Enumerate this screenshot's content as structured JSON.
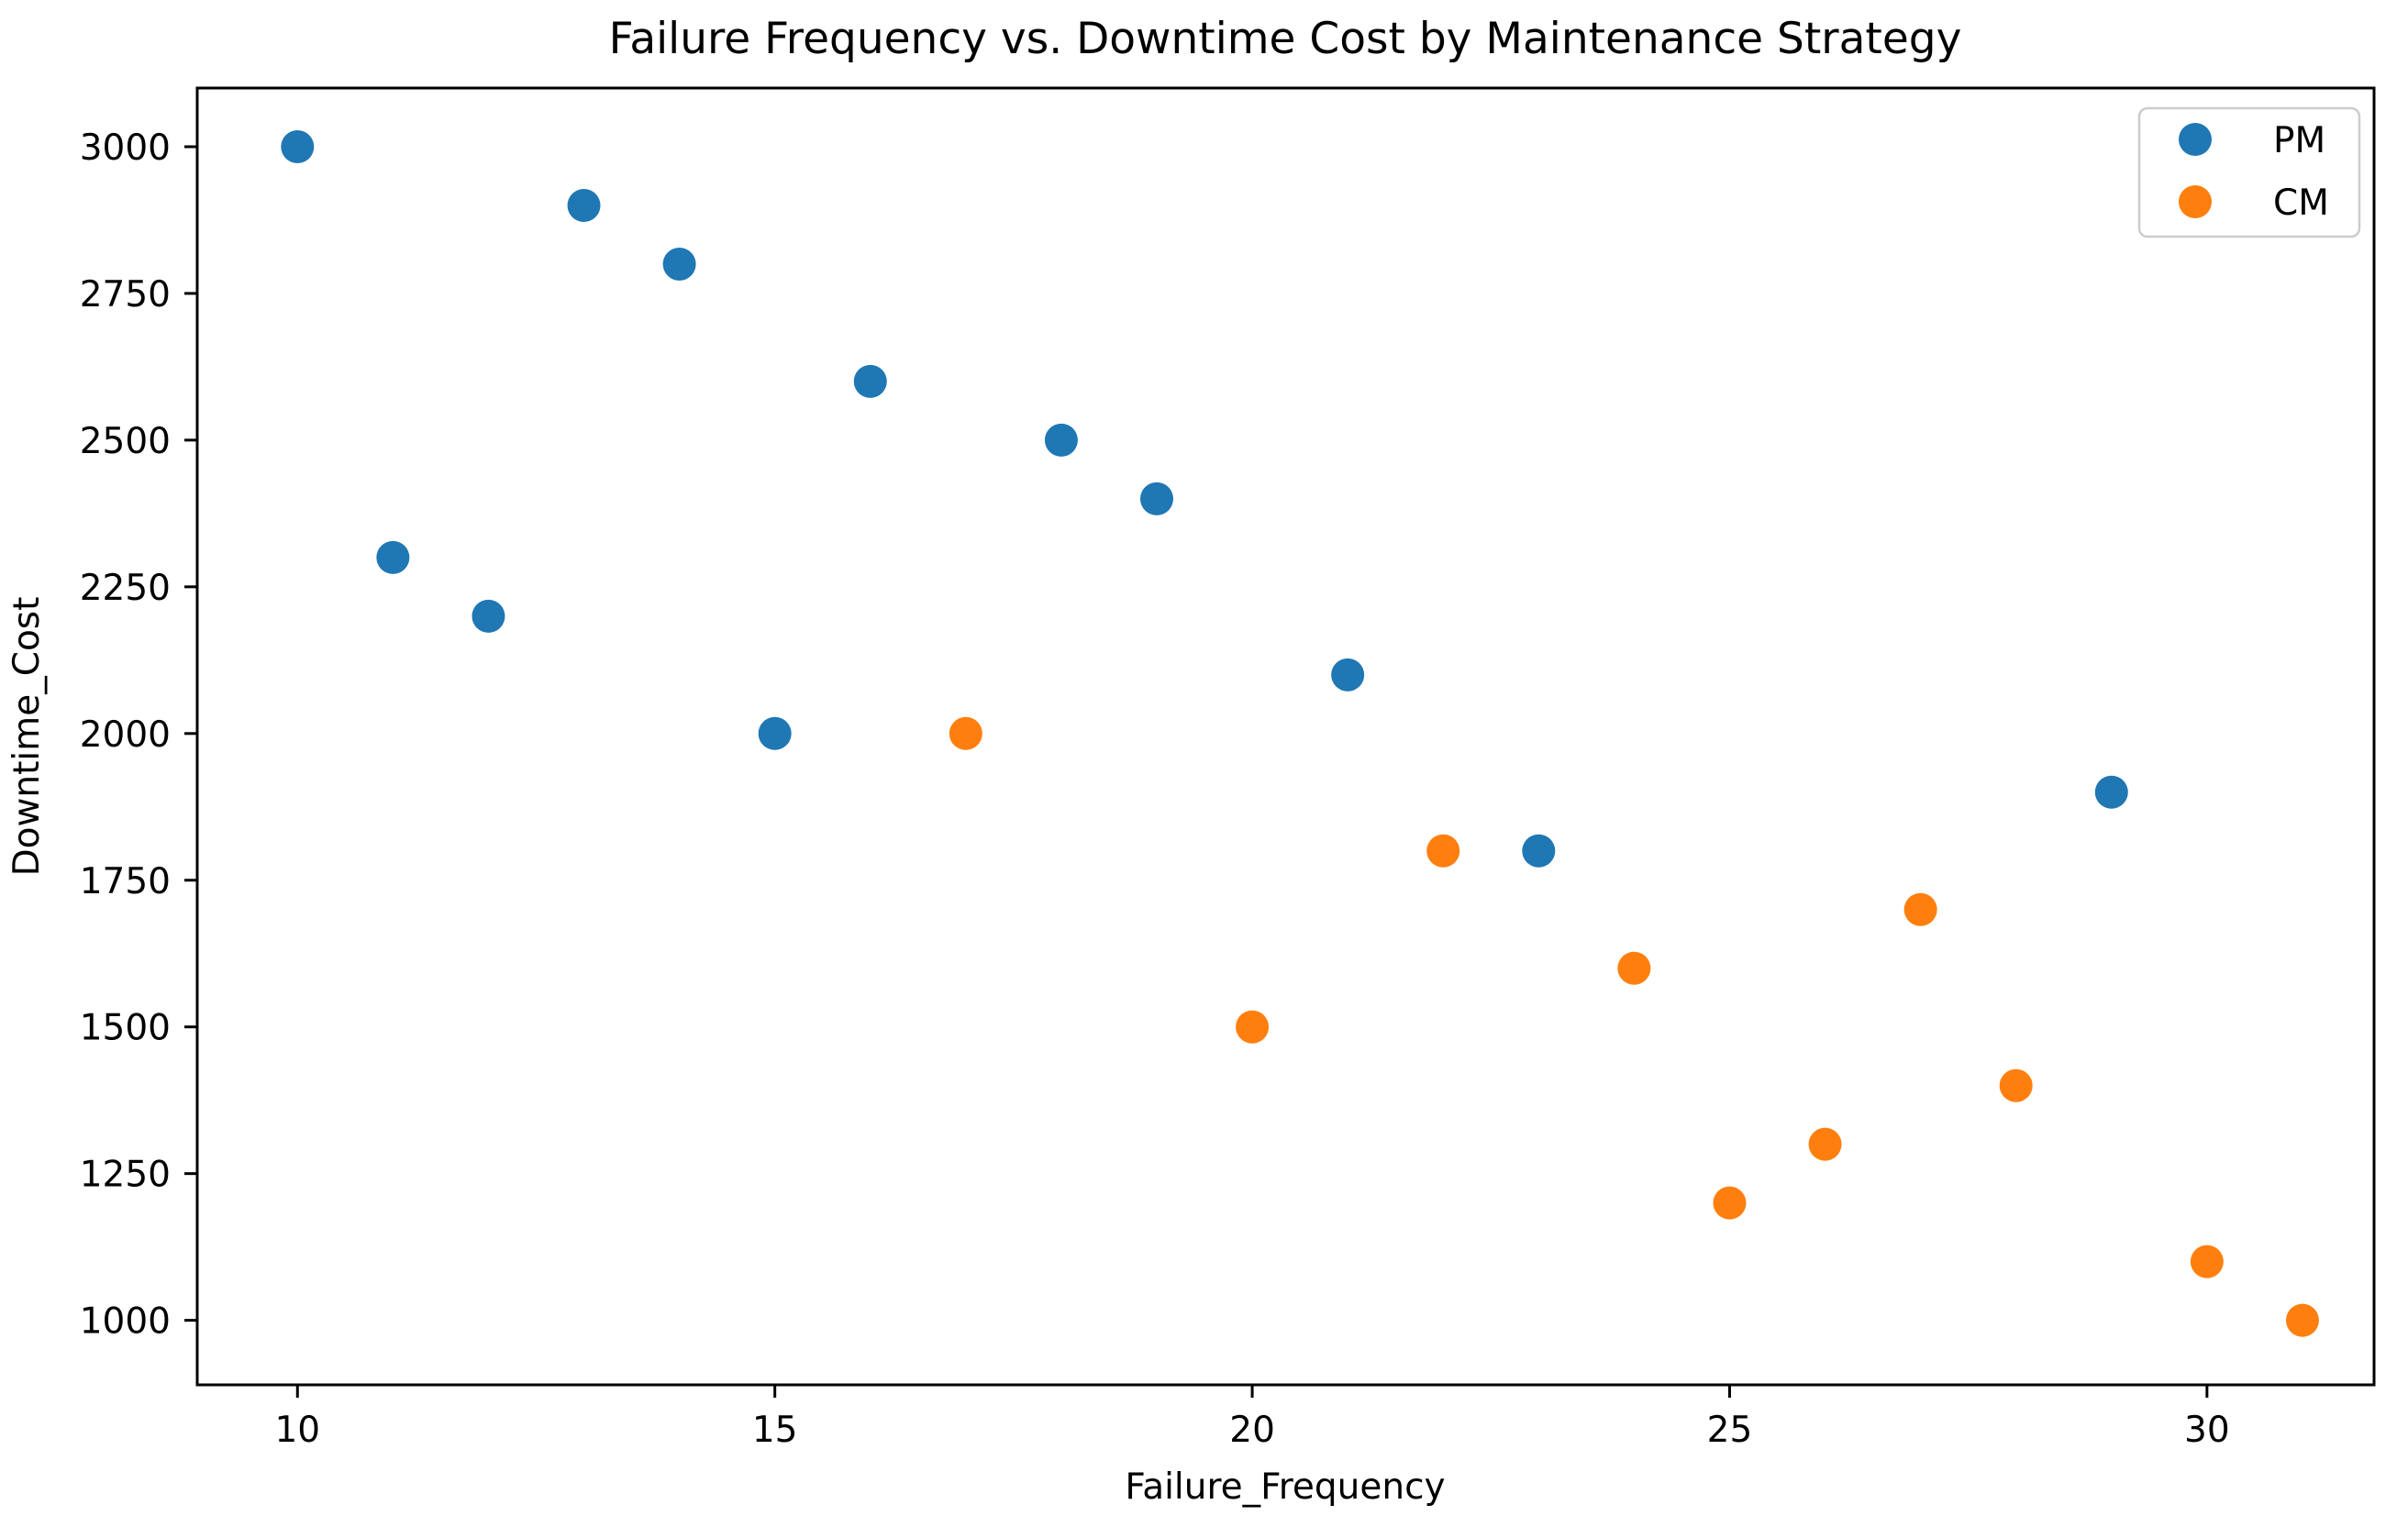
{
  "figure": {
    "kind": "matplotlib-scatter-figure",
    "background": "#ffffff"
  },
  "chart_data": {
    "type": "scatter",
    "title": "Failure Frequency vs. Downtime Cost by Maintenance Strategy",
    "xlabel": "Failure_Frequency",
    "ylabel": "Downtime_Cost",
    "x_ticks": [
      10,
      15,
      20,
      25,
      30
    ],
    "y_ticks": [
      1000,
      1250,
      1500,
      1750,
      2000,
      2250,
      2500,
      2750,
      3000
    ],
    "xlim": [
      8.95,
      31.75
    ],
    "ylim": [
      890,
      3100
    ],
    "grid": false,
    "marker_radius_px": 18,
    "axis_color": "#000000",
    "legend": {
      "position": "upper-right",
      "border_color": "#cccccc",
      "background": "#ffffff",
      "entries": [
        {
          "label": "PM",
          "color": "#1f77b4"
        },
        {
          "label": "CM",
          "color": "#ff7f0e"
        }
      ]
    },
    "series": [
      {
        "name": "PM",
        "color": "#1f77b4",
        "points": [
          [
            10,
            3000
          ],
          [
            11,
            2300
          ],
          [
            12,
            2200
          ],
          [
            13,
            2900
          ],
          [
            14,
            2800
          ],
          [
            15,
            2000
          ],
          [
            16,
            2600
          ],
          [
            18,
            2500
          ],
          [
            19,
            2400
          ],
          [
            21,
            2100
          ],
          [
            23,
            1800
          ],
          [
            29,
            1900
          ]
        ]
      },
      {
        "name": "CM",
        "color": "#ff7f0e",
        "points": [
          [
            17,
            2000
          ],
          [
            20,
            1500
          ],
          [
            22,
            1800
          ],
          [
            24,
            1600
          ],
          [
            25,
            1200
          ],
          [
            26,
            1300
          ],
          [
            27,
            1700
          ],
          [
            28,
            1400
          ],
          [
            30,
            1100
          ],
          [
            31,
            1000
          ]
        ]
      }
    ]
  }
}
